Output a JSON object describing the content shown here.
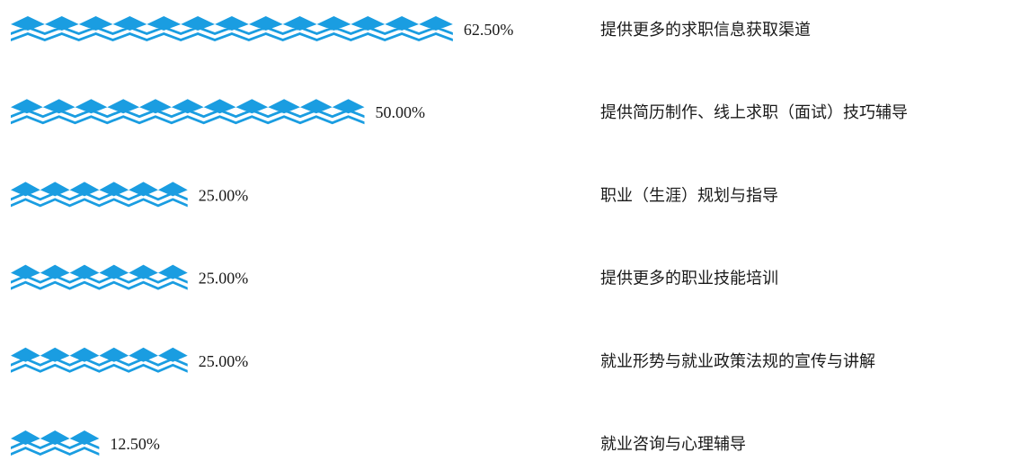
{
  "chart_data": {
    "type": "bar",
    "orientation": "horizontal",
    "mark_style": "pictograph-zigzag",
    "bar_color": "#1a9de1",
    "grid": false,
    "legend": "none",
    "xlim": [
      0,
      100
    ],
    "categories": [
      "提供更多的求职信息获取渠道",
      "提供简历制作、线上求职（面试）技巧辅导",
      "职业（生涯）规划与指导",
      "提供更多的职业技能培训",
      "就业形势与就业政策法规的宣传与讲解",
      "就业咨询与心理辅导"
    ],
    "values": [
      62.5,
      50.0,
      25.0,
      25.0,
      25.0,
      12.5
    ],
    "value_labels": [
      "62.50%",
      "50.00%",
      "25.00%",
      "25.00%",
      "25.00%",
      "12.50%"
    ]
  }
}
